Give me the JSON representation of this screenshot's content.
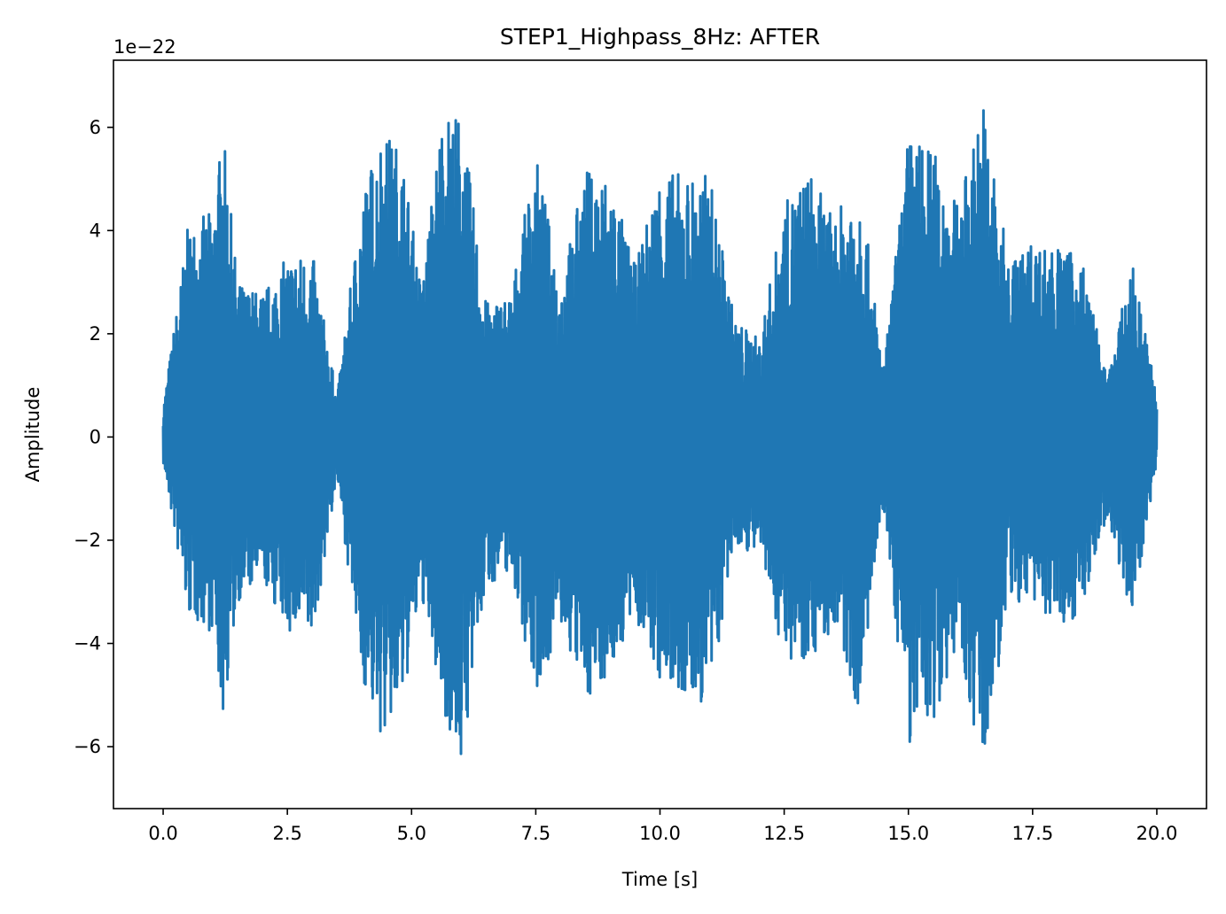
{
  "chart_data": {
    "type": "line",
    "title": "STEP1_Highpass_8Hz: AFTER",
    "xlabel": "Time [s]",
    "ylabel": "Amplitude",
    "y_offset_text": "1e−22",
    "xlim": [
      -1.0,
      21.0
    ],
    "ylim": [
      -7.2,
      7.3
    ],
    "x_ticks": [
      0.0,
      2.5,
      5.0,
      7.5,
      10.0,
      12.5,
      15.0,
      17.5,
      20.0
    ],
    "x_tick_labels": [
      "0.0",
      "2.5",
      "5.0",
      "7.5",
      "10.0",
      "12.5",
      "15.0",
      "17.5",
      "20.0"
    ],
    "y_ticks": [
      -6,
      -4,
      -2,
      0,
      2,
      4,
      6
    ],
    "y_tick_labels": [
      "−6",
      "−4",
      "−2",
      "0",
      "2",
      "4",
      "6"
    ],
    "grid": false,
    "legend": "none",
    "series": [
      {
        "color": "#1f77b4",
        "envelope_x": [
          0.0,
          0.5,
          1.0,
          1.2,
          1.5,
          2.0,
          2.5,
          3.0,
          3.5,
          4.0,
          4.4,
          4.8,
          5.2,
          5.6,
          6.0,
          6.5,
          7.0,
          7.5,
          8.0,
          8.5,
          9.0,
          9.5,
          10.0,
          10.5,
          11.0,
          11.5,
          12.0,
          12.5,
          13.0,
          13.5,
          14.0,
          14.5,
          15.0,
          15.5,
          16.0,
          16.5,
          17.0,
          17.5,
          18.0,
          18.5,
          19.0,
          19.5,
          20.0
        ],
        "envelope_max": [
          0.6,
          4.1,
          4.4,
          6.0,
          3.0,
          2.8,
          3.5,
          3.6,
          0.8,
          4.7,
          6.0,
          5.6,
          2.9,
          6.3,
          6.3,
          2.6,
          2.8,
          5.5,
          3.0,
          5.2,
          5.1,
          3.3,
          5.2,
          5.1,
          5.1,
          2.3,
          1.9,
          4.5,
          5.2,
          4.2,
          5.2,
          1.3,
          5.9,
          5.6,
          4.5,
          6.6,
          3.5,
          3.8,
          3.7,
          3.5,
          1.1,
          3.4,
          0.9
        ],
        "envelope_min": [
          -0.5,
          -3.5,
          -3.8,
          -5.5,
          -3.2,
          -2.8,
          -3.8,
          -4.0,
          -0.8,
          -4.7,
          -5.9,
          -5.3,
          -3.1,
          -5.2,
          -6.4,
          -2.9,
          -2.6,
          -5.0,
          -3.7,
          -5.1,
          -4.6,
          -3.5,
          -4.8,
          -5.2,
          -5.2,
          -2.1,
          -2.3,
          -4.3,
          -4.3,
          -3.8,
          -5.3,
          -1.4,
          -6.0,
          -5.5,
          -4.0,
          -6.6,
          -3.3,
          -3.2,
          -3.7,
          -3.4,
          -1.5,
          -3.5,
          -0.5
        ]
      }
    ]
  }
}
